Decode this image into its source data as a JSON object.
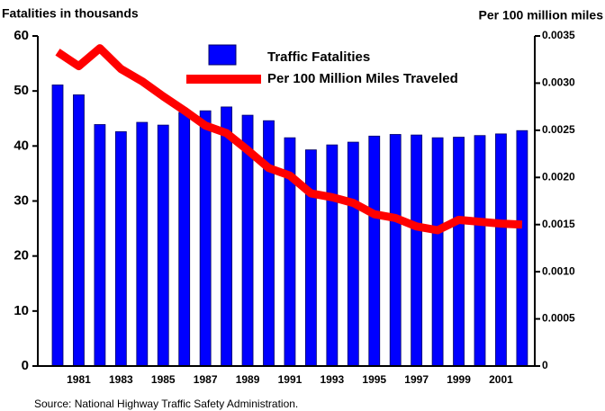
{
  "chart_data": {
    "type": "bar",
    "ylabel": "Fatalities in thousands",
    "y2label": "Per 100 million miles",
    "source": "Source: National Highway Traffic Safety Administration.",
    "categories": [
      null,
      "1981",
      null,
      "1983",
      null,
      "1985",
      null,
      "1987",
      null,
      "1989",
      null,
      "1991",
      null,
      "1993",
      null,
      "1995",
      null,
      "1997",
      null,
      "1999",
      null,
      "2001",
      null
    ],
    "series": [
      {
        "name": "Traffic Fatalities",
        "type": "bar",
        "color": "#0000ff",
        "values": [
          51.1,
          49.3,
          43.9,
          42.6,
          44.3,
          43.8,
          46.1,
          46.4,
          47.1,
          45.6,
          44.6,
          41.5,
          39.3,
          40.2,
          40.7,
          41.8,
          42.1,
          42.0,
          41.5,
          41.6,
          41.9,
          42.2,
          42.8
        ]
      },
      {
        "name": "Per 100 Million Miles Traveled",
        "type": "line",
        "color": "#ff0000",
        "axis": "y2",
        "values": [
          0.00333,
          0.00318,
          0.00337,
          0.00315,
          0.00302,
          0.00286,
          0.00271,
          0.00255,
          0.00247,
          0.00229,
          0.0021,
          0.00202,
          0.00183,
          0.00179,
          0.00173,
          0.00161,
          0.00157,
          0.00148,
          0.00144,
          0.00155,
          0.00153,
          0.00151,
          0.0015
        ]
      }
    ],
    "ylim": [
      0,
      60
    ],
    "yticks": [
      0,
      10,
      20,
      30,
      40,
      50,
      60
    ],
    "y2lim": [
      0,
      0.0035
    ],
    "y2ticks": [
      0,
      0.0005,
      {
        "value": 0.001,
        "label": "0.0010"
      },
      0.0015,
      {
        "value": 0.002,
        "label": "0.0020"
      },
      0.0025,
      {
        "value": 0.003,
        "label": "0.0030"
      },
      0.0035
    ],
    "grid": false
  }
}
